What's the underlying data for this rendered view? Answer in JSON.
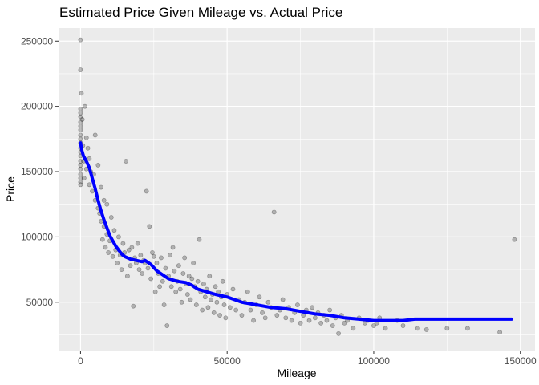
{
  "chart_data": {
    "type": "scatter",
    "title": "Estimated Price Given Mileage vs. Actual Price",
    "xlabel": "Mileage",
    "ylabel": "Price",
    "xlim": [
      -7500,
      155000
    ],
    "ylim": [
      13000,
      260000
    ],
    "x_ticks": [
      0,
      50000,
      100000,
      150000
    ],
    "x_tick_labels": [
      "0",
      "50000",
      "100000",
      "150000"
    ],
    "y_ticks": [
      50000,
      100000,
      150000,
      200000,
      250000
    ],
    "y_tick_labels": [
      "50000",
      "100000",
      "150000",
      "200000",
      "250000"
    ],
    "grid": true,
    "legend": "none",
    "colors": {
      "panel": "#ebebeb",
      "grid_major": "#ffffff",
      "points": "#000000",
      "fit_line": "#0000ff"
    },
    "series": [
      {
        "kind": "points",
        "opacity": 0.25,
        "points": [
          [
            0,
            251000
          ],
          [
            0,
            228000
          ],
          [
            0,
            198000
          ],
          [
            0,
            195000
          ],
          [
            0,
            192000
          ],
          [
            0,
            188000
          ],
          [
            0,
            185000
          ],
          [
            0,
            182000
          ],
          [
            0,
            178000
          ],
          [
            0,
            175000
          ],
          [
            0,
            172000
          ],
          [
            0,
            168000
          ],
          [
            0,
            165000
          ],
          [
            0,
            162000
          ],
          [
            0,
            158000
          ],
          [
            0,
            155000
          ],
          [
            0,
            152000
          ],
          [
            0,
            148000
          ],
          [
            0,
            145000
          ],
          [
            0,
            142000
          ],
          [
            0,
            140000
          ],
          [
            300,
            210000
          ],
          [
            600,
            190000
          ],
          [
            800,
            170000
          ],
          [
            1000,
            158000
          ],
          [
            1200,
            145000
          ],
          [
            1500,
            200000
          ],
          [
            2000,
            176000
          ],
          [
            2000,
            152000
          ],
          [
            2500,
            168000
          ],
          [
            3000,
            140000
          ],
          [
            3000,
            160000
          ],
          [
            3500,
            150000
          ],
          [
            4000,
            135000
          ],
          [
            4500,
            148000
          ],
          [
            5000,
            128000
          ],
          [
            5000,
            178000
          ],
          [
            6000,
            122000
          ],
          [
            6000,
            155000
          ],
          [
            6500,
            118000
          ],
          [
            7000,
            112000
          ],
          [
            7000,
            138000
          ],
          [
            7500,
            98000
          ],
          [
            8000,
            108000
          ],
          [
            8000,
            128000
          ],
          [
            8500,
            92000
          ],
          [
            9000,
            102000
          ],
          [
            9000,
            125000
          ],
          [
            9500,
            88000
          ],
          [
            10000,
            97000
          ],
          [
            10500,
            115000
          ],
          [
            11000,
            85000
          ],
          [
            11500,
            105000
          ],
          [
            12000,
            90000
          ],
          [
            12500,
            80000
          ],
          [
            13000,
            100000
          ],
          [
            13500,
            86000
          ],
          [
            14000,
            75000
          ],
          [
            14500,
            95000
          ],
          [
            15000,
            88000
          ],
          [
            15500,
            158000
          ],
          [
            16000,
            70000
          ],
          [
            16500,
            90000
          ],
          [
            17000,
            78000
          ],
          [
            17500,
            92000
          ],
          [
            18000,
            47000
          ],
          [
            18500,
            84000
          ],
          [
            19000,
            80000
          ],
          [
            19500,
            95000
          ],
          [
            20000,
            75000
          ],
          [
            20500,
            86000
          ],
          [
            21000,
            72000
          ],
          [
            21500,
            82000
          ],
          [
            22000,
            80000
          ],
          [
            22500,
            135000
          ],
          [
            23000,
            76000
          ],
          [
            23500,
            108000
          ],
          [
            24000,
            68000
          ],
          [
            24500,
            88000
          ],
          [
            25000,
            85000
          ],
          [
            25500,
            58000
          ],
          [
            26000,
            80000
          ],
          [
            26500,
            72000
          ],
          [
            27000,
            62000
          ],
          [
            27500,
            84000
          ],
          [
            28000,
            66000
          ],
          [
            28500,
            48000
          ],
          [
            29000,
            76000
          ],
          [
            29500,
            32000
          ],
          [
            30000,
            70000
          ],
          [
            30500,
            86000
          ],
          [
            31000,
            62000
          ],
          [
            31500,
            92000
          ],
          [
            32000,
            74000
          ],
          [
            32500,
            58000
          ],
          [
            33000,
            66000
          ],
          [
            33500,
            78000
          ],
          [
            34000,
            60000
          ],
          [
            34500,
            50000
          ],
          [
            35000,
            72000
          ],
          [
            35500,
            84000
          ],
          [
            36000,
            64000
          ],
          [
            36500,
            56000
          ],
          [
            37000,
            70000
          ],
          [
            37500,
            52000
          ],
          [
            38000,
            68000
          ],
          [
            38500,
            80000
          ],
          [
            39000,
            62000
          ],
          [
            39500,
            48000
          ],
          [
            40000,
            66000
          ],
          [
            40500,
            98000
          ],
          [
            41000,
            58000
          ],
          [
            41500,
            44000
          ],
          [
            42000,
            64000
          ],
          [
            42500,
            54000
          ],
          [
            43000,
            60000
          ],
          [
            43500,
            46000
          ],
          [
            44000,
            70000
          ],
          [
            44500,
            52000
          ],
          [
            45000,
            56000
          ],
          [
            45500,
            42000
          ],
          [
            46000,
            62000
          ],
          [
            46500,
            50000
          ],
          [
            47000,
            58000
          ],
          [
            47500,
            40000
          ],
          [
            48000,
            54000
          ],
          [
            48500,
            66000
          ],
          [
            49000,
            48000
          ],
          [
            49500,
            38000
          ],
          [
            50000,
            56000
          ],
          [
            51000,
            46000
          ],
          [
            52000,
            60000
          ],
          [
            53000,
            44000
          ],
          [
            54000,
            52000
          ],
          [
            55000,
            40000
          ],
          [
            56000,
            50000
          ],
          [
            57000,
            58000
          ],
          [
            58000,
            44000
          ],
          [
            59000,
            36000
          ],
          [
            60000,
            48000
          ],
          [
            61000,
            54000
          ],
          [
            62000,
            42000
          ],
          [
            63000,
            38000
          ],
          [
            64000,
            50000
          ],
          [
            65000,
            46000
          ],
          [
            66000,
            119000
          ],
          [
            67000,
            40000
          ],
          [
            68000,
            44000
          ],
          [
            69000,
            52000
          ],
          [
            70000,
            38000
          ],
          [
            71000,
            46000
          ],
          [
            72000,
            36000
          ],
          [
            73000,
            42000
          ],
          [
            74000,
            48000
          ],
          [
            75000,
            34000
          ],
          [
            76000,
            40000
          ],
          [
            77000,
            44000
          ],
          [
            78000,
            36000
          ],
          [
            79000,
            46000
          ],
          [
            80000,
            38000
          ],
          [
            81000,
            42000
          ],
          [
            82000,
            34000
          ],
          [
            83000,
            40000
          ],
          [
            84000,
            36000
          ],
          [
            85000,
            44000
          ],
          [
            86000,
            32000
          ],
          [
            87000,
            38000
          ],
          [
            88000,
            26000
          ],
          [
            89000,
            40000
          ],
          [
            90000,
            34000
          ],
          [
            91000,
            36000
          ],
          [
            93000,
            30000
          ],
          [
            95000,
            38000
          ],
          [
            97000,
            34000
          ],
          [
            98000,
            36000
          ],
          [
            100000,
            32000
          ],
          [
            101000,
            34000
          ],
          [
            102000,
            38000
          ],
          [
            104000,
            30000
          ],
          [
            108000,
            36000
          ],
          [
            110000,
            32000
          ],
          [
            115000,
            30000
          ],
          [
            118000,
            29000
          ],
          [
            125000,
            30000
          ],
          [
            132000,
            30000
          ],
          [
            143000,
            27000
          ],
          [
            148000,
            98000
          ]
        ]
      },
      {
        "kind": "line",
        "width": 4,
        "points": [
          [
            0,
            172000
          ],
          [
            500,
            166000
          ],
          [
            1000,
            162000
          ],
          [
            2000,
            158000
          ],
          [
            3000,
            153000
          ],
          [
            4000,
            145000
          ],
          [
            5000,
            137000
          ],
          [
            6000,
            128000
          ],
          [
            7000,
            120000
          ],
          [
            8000,
            113000
          ],
          [
            9000,
            107000
          ],
          [
            10000,
            101000
          ],
          [
            11000,
            97000
          ],
          [
            12000,
            93000
          ],
          [
            13000,
            90000
          ],
          [
            14000,
            87000
          ],
          [
            15000,
            85000
          ],
          [
            17000,
            83000
          ],
          [
            19000,
            82000
          ],
          [
            21000,
            81000
          ],
          [
            22000,
            82000
          ],
          [
            24000,
            79000
          ],
          [
            26000,
            74000
          ],
          [
            28000,
            71000
          ],
          [
            30000,
            68000
          ],
          [
            33000,
            66000
          ],
          [
            36000,
            65000
          ],
          [
            38000,
            63000
          ],
          [
            40000,
            60000
          ],
          [
            43000,
            58000
          ],
          [
            46000,
            56000
          ],
          [
            50000,
            54000
          ],
          [
            55000,
            50000
          ],
          [
            60000,
            48000
          ],
          [
            65000,
            46000
          ],
          [
            70000,
            45000
          ],
          [
            75000,
            43000
          ],
          [
            80000,
            41000
          ],
          [
            85000,
            40000
          ],
          [
            90000,
            38000
          ],
          [
            95000,
            37000
          ],
          [
            100000,
            36000
          ],
          [
            105000,
            36000
          ],
          [
            110000,
            36000
          ],
          [
            114000,
            37000
          ],
          [
            120000,
            37000
          ],
          [
            130000,
            37000
          ],
          [
            140000,
            37000
          ],
          [
            147000,
            37000
          ]
        ]
      }
    ]
  }
}
